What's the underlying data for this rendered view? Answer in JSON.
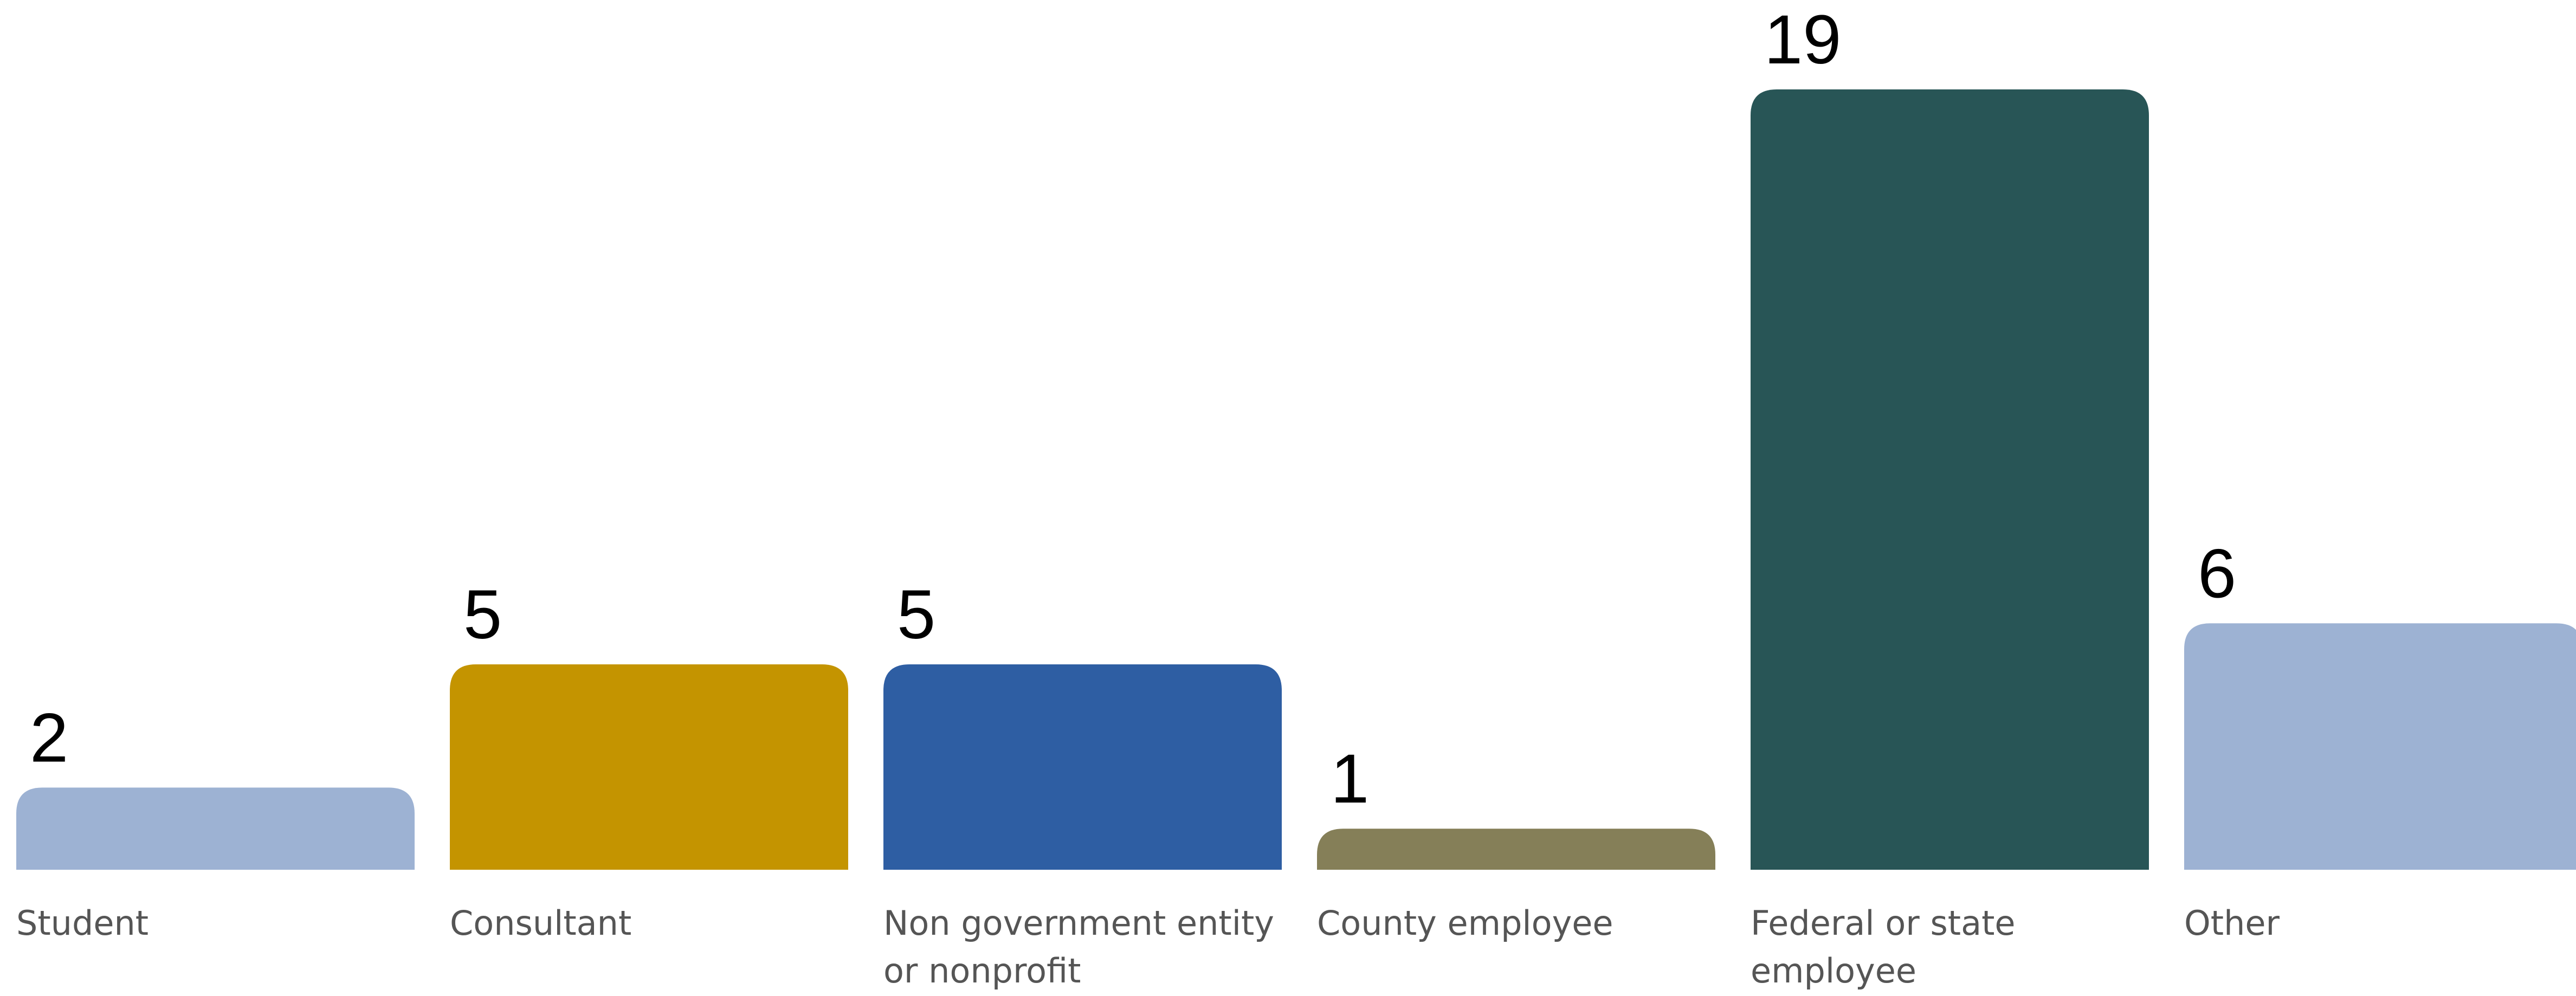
{
  "chart_data": {
    "type": "bar",
    "categories": [
      "Student",
      "Consultant",
      "Non government entity or nonprofit",
      "County employee",
      "Federal or state employee",
      "Other"
    ],
    "values": [
      2,
      5,
      5,
      1,
      19,
      6
    ],
    "colors": [
      "#9db2d3",
      "#c49400",
      "#2e5ea3",
      "#857f58",
      "#285556",
      "#9db2d3"
    ],
    "data_labels": [
      "2",
      "5",
      "5",
      "1",
      "19",
      "6"
    ],
    "title": "",
    "xlabel": "",
    "ylabel": "",
    "ylim": [
      0,
      19
    ],
    "grid": false,
    "legend": "none"
  }
}
